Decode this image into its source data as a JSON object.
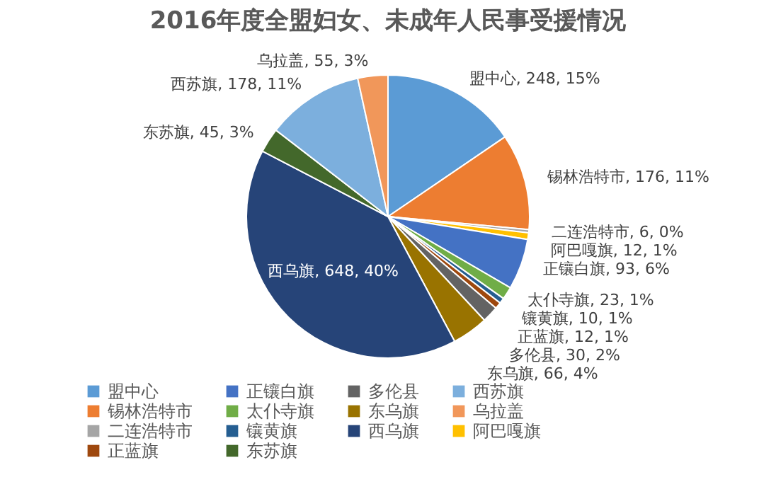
{
  "chart_data": {
    "type": "pie",
    "title": "2016年度全盟妇女、未成年人民事受援情况",
    "categories": [
      "盟中心",
      "锡林浩特市",
      "二连浩特市",
      "阿巴嘎旗",
      "正镶白旗",
      "太仆寺旗",
      "镶黄旗",
      "正蓝旗",
      "多伦县",
      "东乌旗",
      "西乌旗",
      "东苏旗",
      "西苏旗",
      "乌拉盖"
    ],
    "values": [
      248,
      176,
      6,
      12,
      93,
      23,
      10,
      12,
      30,
      66,
      648,
      45,
      178,
      55
    ],
    "colors": [
      "#5b9bd5",
      "#ed7d31",
      "#a5a5a5",
      "#ffc000",
      "#4472c4",
      "#70ad47",
      "#255e91",
      "#9e480e",
      "#636363",
      "#997300",
      "#264478",
      "#43682b",
      "#7cafdd",
      "#f1975a"
    ],
    "value_labels": [
      "盟中心, 248, 15%",
      "锡林浩特市, 176, 11%",
      "二连浩特市, 6, 0%",
      "阿巴嘎旗, 12, 1%",
      "正镶白旗, 93, 6%",
      "太仆寺旗, 23, 1%",
      "镶黄旗, 10, 1%",
      "正蓝旗, 12, 1%",
      "多伦县, 30, 2%",
      "东乌旗, 66, 4%",
      "西乌旗, 648, 40%",
      "东苏旗, 45, 3%",
      "西苏旗, 178, 11%",
      "乌拉盖, 55, 3%"
    ],
    "legend": "bottom"
  }
}
